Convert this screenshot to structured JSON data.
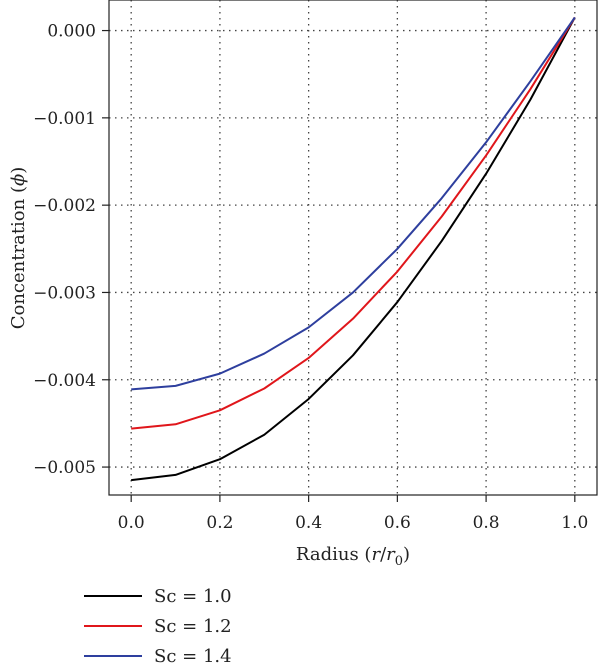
{
  "chart_data": {
    "type": "line",
    "xlabel": "Radius (r/r₀)",
    "ylabel": "Concentration (ϕ)",
    "xlim": [
      -0.05,
      1.05
    ],
    "ylim": [
      -0.00532,
      0.00035
    ],
    "xticks": [
      0.0,
      0.2,
      0.4,
      0.6,
      0.8,
      1.0
    ],
    "xtick_labels": [
      "0.0",
      "0.2",
      "0.4",
      "0.6",
      "0.8",
      "1.0"
    ],
    "yticks": [
      0.0,
      -0.001,
      -0.002,
      -0.003,
      -0.004,
      -0.005
    ],
    "ytick_labels": [
      "0.000",
      "−0.001",
      "−0.002",
      "−0.003",
      "−0.004",
      "−0.005"
    ],
    "grid": true,
    "legend_position": "below-left",
    "x": [
      0.0,
      0.1,
      0.2,
      0.3,
      0.4,
      0.5,
      0.6,
      0.7,
      0.8,
      0.9,
      1.0
    ],
    "series": [
      {
        "name": "Sc = 1.0",
        "color": "#000000",
        "values": [
          -0.00515,
          -0.00509,
          -0.00491,
          -0.00463,
          -0.00422,
          -0.00372,
          -0.00311,
          -0.00241,
          -0.00164,
          -0.00079,
          0.00015
        ]
      },
      {
        "name": "Sc = 1.2",
        "color": "#e0161b",
        "values": [
          -0.00456,
          -0.00451,
          -0.00435,
          -0.0041,
          -0.00375,
          -0.0033,
          -0.00276,
          -0.00213,
          -0.00143,
          -0.00067,
          0.00015
        ]
      },
      {
        "name": "Sc = 1.4",
        "color": "#2e3f9e",
        "values": [
          -0.00411,
          -0.00407,
          -0.00393,
          -0.0037,
          -0.0034,
          -0.003,
          -0.0025,
          -0.00192,
          -0.00128,
          -0.00058,
          0.00015
        ]
      }
    ]
  }
}
